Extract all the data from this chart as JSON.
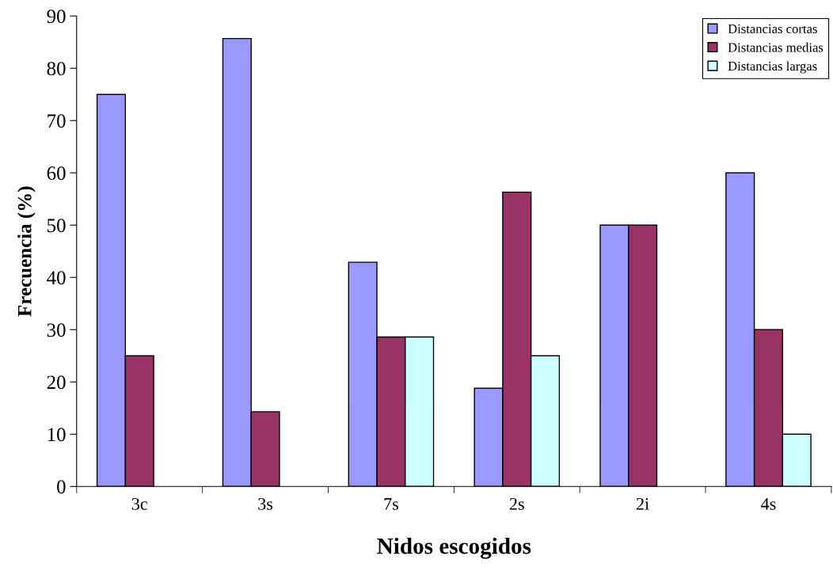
{
  "chart_data": {
    "type": "bar",
    "xlabel": "Nidos escogidos",
    "ylabel": "Frecuencia (%)",
    "categories": [
      "3c",
      "3s",
      "7s",
      "2s",
      "2i",
      "4s"
    ],
    "series": [
      {
        "name": "Distancias cortas",
        "color": "#9999ff",
        "values": [
          75,
          85.7,
          42.9,
          18.8,
          50,
          60
        ]
      },
      {
        "name": "Distancias medias",
        "color": "#993366",
        "values": [
          25,
          14.3,
          28.6,
          56.3,
          50,
          30
        ]
      },
      {
        "name": "Distancias largas",
        "color": "#ccffff",
        "values": [
          null,
          null,
          28.6,
          25,
          null,
          10
        ]
      }
    ],
    "ylim": [
      0,
      90
    ],
    "yticks": [
      0,
      10,
      20,
      30,
      40,
      50,
      60,
      70,
      80,
      90
    ],
    "grid": false,
    "legend": "top right"
  }
}
